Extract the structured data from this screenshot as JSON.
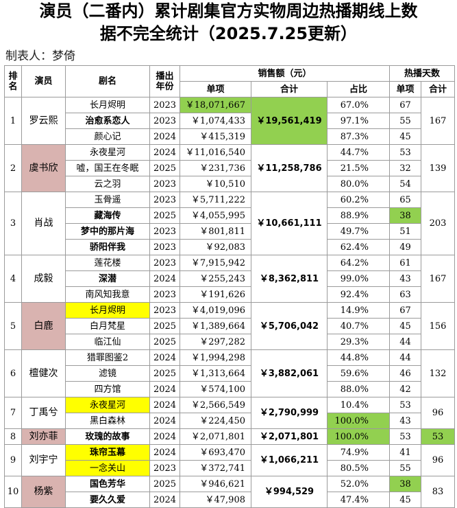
{
  "title": {
    "line1": "演员（二番内）累计剧集官方实物周边热播期线上数",
    "line2": "据不完全统计（2025.7.25更新）"
  },
  "maker": "制表人：梦倚",
  "headers": {
    "rank": "排名",
    "actor": "演员",
    "drama": "剧名",
    "year": "播出年份",
    "sales": "销售额（元）",
    "single": "单项",
    "total": "合计",
    "share": "占比",
    "hot_days": "热播天数",
    "days_single": "单项",
    "days_total": "合计"
  },
  "groups": [
    {
      "rank": "1",
      "actor": "罗云熙",
      "actor_bg": "",
      "total": "￥19,561,419",
      "total_bg": "green",
      "days_total": "167",
      "days_total_bg": "",
      "rows": [
        {
          "drama": "长月烬明",
          "bold": false,
          "drama_bg": "",
          "year": "2023",
          "sales": "￥18,071,667",
          "sales_bg": "green",
          "share": "67.0%",
          "share_bg": "",
          "days": "67",
          "days_bg": ""
        },
        {
          "drama": "治愈系恋人",
          "bold": true,
          "drama_bg": "",
          "year": "2023",
          "sales": "￥1,074,433",
          "sales_bg": "",
          "share": "97.1%",
          "share_bg": "",
          "days": "55",
          "days_bg": ""
        },
        {
          "drama": "颜心记",
          "bold": false,
          "drama_bg": "",
          "year": "2024",
          "sales": "￥415,319",
          "sales_bg": "",
          "share": "87.3%",
          "share_bg": "",
          "days": "45",
          "days_bg": ""
        }
      ]
    },
    {
      "rank": "2",
      "actor": "虞书欣",
      "actor_bg": "pink",
      "total": "￥11,258,786",
      "total_bg": "",
      "days_total": "139",
      "days_total_bg": "",
      "rows": [
        {
          "drama": "永夜星河",
          "bold": false,
          "drama_bg": "",
          "year": "2024",
          "sales": "￥11,016,540",
          "sales_bg": "",
          "share": "44.7%",
          "share_bg": "",
          "days": "53",
          "days_bg": ""
        },
        {
          "drama": "嘘，国王在冬眠",
          "bold": false,
          "drama_bg": "",
          "year": "2025",
          "sales": "￥231,736",
          "sales_bg": "",
          "share": "21.5%",
          "share_bg": "",
          "days": "32",
          "days_bg": ""
        },
        {
          "drama": "云之羽",
          "bold": false,
          "drama_bg": "",
          "year": "2023",
          "sales": "￥10,510",
          "sales_bg": "",
          "share": "80.0%",
          "share_bg": "",
          "days": "54",
          "days_bg": ""
        }
      ]
    },
    {
      "rank": "3",
      "actor": "肖战",
      "actor_bg": "",
      "total": "￥10,661,111",
      "total_bg": "",
      "days_total": "203",
      "days_total_bg": "",
      "rows": [
        {
          "drama": "玉骨遥",
          "bold": false,
          "drama_bg": "",
          "year": "2023",
          "sales": "￥5,711,222",
          "sales_bg": "",
          "share": "60.2%",
          "share_bg": "",
          "days": "65",
          "days_bg": ""
        },
        {
          "drama": "藏海传",
          "bold": true,
          "drama_bg": "",
          "year": "2025",
          "sales": "￥4,055,995",
          "sales_bg": "",
          "share": "88.9%",
          "share_bg": "",
          "days": "38",
          "days_bg": "green"
        },
        {
          "drama": "梦中的那片海",
          "bold": true,
          "drama_bg": "",
          "year": "2023",
          "sales": "￥801,811",
          "sales_bg": "",
          "share": "49.7%",
          "share_bg": "",
          "days": "51",
          "days_bg": ""
        },
        {
          "drama": "骄阳伴我",
          "bold": true,
          "drama_bg": "",
          "year": "2023",
          "sales": "￥92,083",
          "sales_bg": "",
          "share": "62.4%",
          "share_bg": "",
          "days": "49",
          "days_bg": ""
        }
      ]
    },
    {
      "rank": "4",
      "actor": "成毅",
      "actor_bg": "",
      "total": "￥8,362,811",
      "total_bg": "",
      "days_total": "167",
      "days_total_bg": "",
      "rows": [
        {
          "drama": "莲花楼",
          "bold": false,
          "drama_bg": "",
          "year": "2023",
          "sales": "￥7,915,942",
          "sales_bg": "",
          "share": "64.2%",
          "share_bg": "",
          "days": "61",
          "days_bg": ""
        },
        {
          "drama": "深潜",
          "bold": true,
          "drama_bg": "",
          "year": "2024",
          "sales": "￥255,243",
          "sales_bg": "",
          "share": "99.0%",
          "share_bg": "",
          "days": "43",
          "days_bg": ""
        },
        {
          "drama": "南风知我意",
          "bold": false,
          "drama_bg": "",
          "year": "2023",
          "sales": "￥191,626",
          "sales_bg": "",
          "share": "92.4%",
          "share_bg": "",
          "days": "63",
          "days_bg": ""
        }
      ]
    },
    {
      "rank": "5",
      "actor": "白鹿",
      "actor_bg": "pink",
      "total": "￥5,706,042",
      "total_bg": "",
      "days_total": "156",
      "days_total_bg": "",
      "rows": [
        {
          "drama": "长月烬明",
          "bold": false,
          "drama_bg": "yellow",
          "year": "2023",
          "sales": "￥4,019,096",
          "sales_bg": "",
          "share": "14.9%",
          "share_bg": "",
          "days": "67",
          "days_bg": ""
        },
        {
          "drama": "白月梵星",
          "bold": false,
          "drama_bg": "",
          "year": "2025",
          "sales": "￥1,389,664",
          "sales_bg": "",
          "share": "40.7%",
          "share_bg": "",
          "days": "45",
          "days_bg": ""
        },
        {
          "drama": "临江仙",
          "bold": false,
          "drama_bg": "",
          "year": "2025",
          "sales": "￥297,282",
          "sales_bg": "",
          "share": "29.3%",
          "share_bg": "",
          "days": "44",
          "days_bg": ""
        }
      ]
    },
    {
      "rank": "6",
      "actor": "檀健次",
      "actor_bg": "",
      "total": "￥3,882,061",
      "total_bg": "",
      "days_total": "132",
      "days_total_bg": "",
      "rows": [
        {
          "drama": "猎罪图鉴2",
          "bold": false,
          "drama_bg": "",
          "year": "2024",
          "sales": "￥1,994,298",
          "sales_bg": "",
          "share": "44.8%",
          "share_bg": "",
          "days": "44",
          "days_bg": ""
        },
        {
          "drama": "滤镜",
          "bold": false,
          "drama_bg": "",
          "year": "2025",
          "sales": "￥1,313,664",
          "sales_bg": "",
          "share": "59.6%",
          "share_bg": "",
          "days": "46",
          "days_bg": ""
        },
        {
          "drama": "四方馆",
          "bold": false,
          "drama_bg": "",
          "year": "2024",
          "sales": "￥574,100",
          "sales_bg": "",
          "share": "88.0%",
          "share_bg": "",
          "days": "42",
          "days_bg": ""
        }
      ]
    },
    {
      "rank": "7",
      "actor": "丁禹兮",
      "actor_bg": "",
      "total": "￥2,790,999",
      "total_bg": "",
      "days_total": "96",
      "days_total_bg": "",
      "rows": [
        {
          "drama": "永夜星河",
          "bold": false,
          "drama_bg": "yellow",
          "year": "2024",
          "sales": "￥2,566,549",
          "sales_bg": "",
          "share": "10.4%",
          "share_bg": "",
          "days": "53",
          "days_bg": ""
        },
        {
          "drama": "黑白森林",
          "bold": false,
          "drama_bg": "",
          "year": "2024",
          "sales": "￥224,450",
          "sales_bg": "",
          "share": "100.0%",
          "share_bg": "green",
          "days": "43",
          "days_bg": ""
        }
      ]
    },
    {
      "rank": "8",
      "actor": "刘亦菲",
      "actor_bg": "pink",
      "total": "￥2,071,801",
      "total_bg": "",
      "days_total": "53",
      "days_total_bg": "green",
      "rows": [
        {
          "drama": "玫瑰的故事",
          "bold": true,
          "drama_bg": "",
          "year": "2024",
          "sales": "￥2,071,801",
          "sales_bg": "",
          "share": "100.0%",
          "share_bg": "green",
          "days": "53",
          "days_bg": ""
        }
      ]
    },
    {
      "rank": "9",
      "actor": "刘宇宁",
      "actor_bg": "",
      "total": "￥1,066,211",
      "total_bg": "",
      "days_total": "96",
      "days_total_bg": "",
      "rows": [
        {
          "drama": "珠帘玉幕",
          "bold": true,
          "drama_bg": "yellow",
          "year": "2024",
          "sales": "￥693,470",
          "sales_bg": "",
          "share": "74.9%",
          "share_bg": "",
          "days": "41",
          "days_bg": ""
        },
        {
          "drama": "一念关山",
          "bold": false,
          "drama_bg": "yellow",
          "year": "2023",
          "sales": "￥372,741",
          "sales_bg": "",
          "share": "80.5%",
          "share_bg": "",
          "days": "55",
          "days_bg": ""
        }
      ]
    },
    {
      "rank": "10",
      "actor": "杨紫",
      "actor_bg": "pink",
      "total": "￥994,529",
      "total_bg": "",
      "days_total": "83",
      "days_total_bg": "",
      "rows": [
        {
          "drama": "国色芳华",
          "bold": true,
          "drama_bg": "",
          "year": "2025",
          "sales": "￥946,621",
          "sales_bg": "",
          "share": "52.0%",
          "share_bg": "",
          "days": "38",
          "days_bg": "green"
        },
        {
          "drama": "要久久爱",
          "bold": true,
          "drama_bg": "",
          "year": "2024",
          "sales": "￥47,908",
          "sales_bg": "",
          "share": "47.4%",
          "share_bg": "",
          "days": "45",
          "days_bg": ""
        }
      ]
    }
  ]
}
